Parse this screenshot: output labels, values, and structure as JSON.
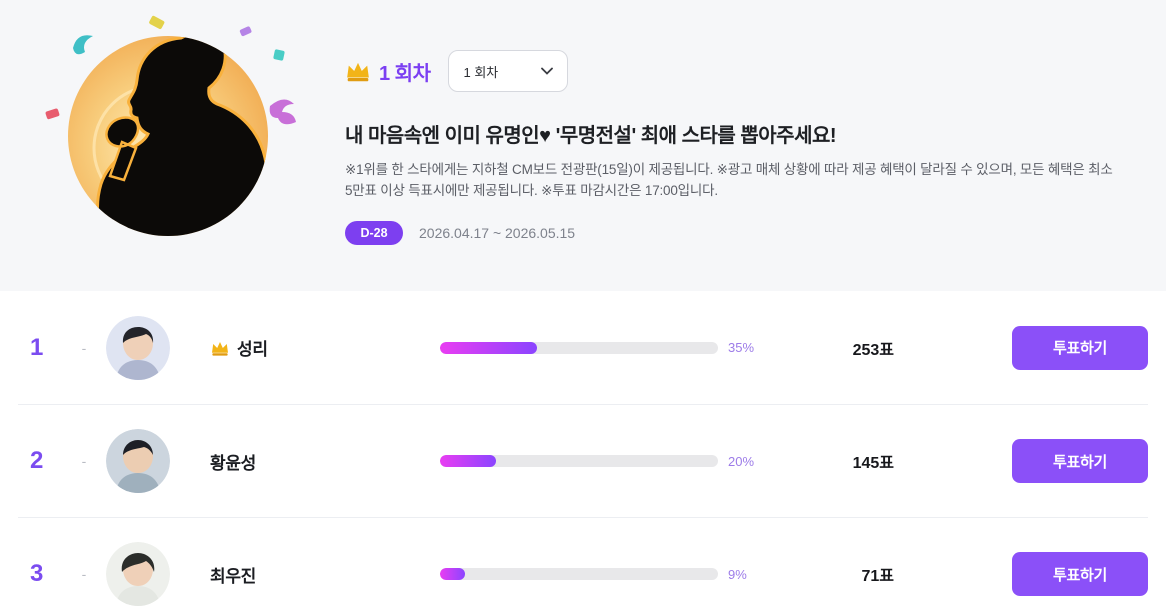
{
  "colors": {
    "accent_purple": "#7b3ff2",
    "button_purple": "#8b50f8",
    "badge_purple": "#7d3ff0",
    "bar_gradient_start": "#e93df2",
    "bar_gradient_end": "#8b45ff",
    "hero_background": "#f6f7f9"
  },
  "header": {
    "crown_icon": "crown-icon",
    "round_label": "1 회차",
    "round_select_value": "1 회차",
    "title": "내 마음속엔 이미 유명인♥ '무명전설' 최애 스타를 뽑아주세요!",
    "description": "※1위를 한 스타에게는 지하철 CM보드 전광판(15일)이 제공됩니다. ※광고 매체 상황에 따라 제공 혜택이 달라질 수 있으며, 모든 혜택은 최소 5만표 이상 득표시에만 제공됩니다. ※투표 마감시간은 17:00입니다.",
    "dday_badge": "D-28",
    "date_range": "2026.04.17 ~ 2026.05.15"
  },
  "ranking": {
    "vote_button_label": "투표하기",
    "rows": [
      {
        "rank": "1",
        "change": "-",
        "name": "성리",
        "has_crown": true,
        "percent": "35%",
        "percent_value": 35,
        "votes": "253표"
      },
      {
        "rank": "2",
        "change": "-",
        "name": "황윤성",
        "has_crown": false,
        "percent": "20%",
        "percent_value": 20,
        "votes": "145표"
      },
      {
        "rank": "3",
        "change": "-",
        "name": "최우진",
        "has_crown": false,
        "percent": "9%",
        "percent_value": 9,
        "votes": "71표"
      }
    ]
  }
}
